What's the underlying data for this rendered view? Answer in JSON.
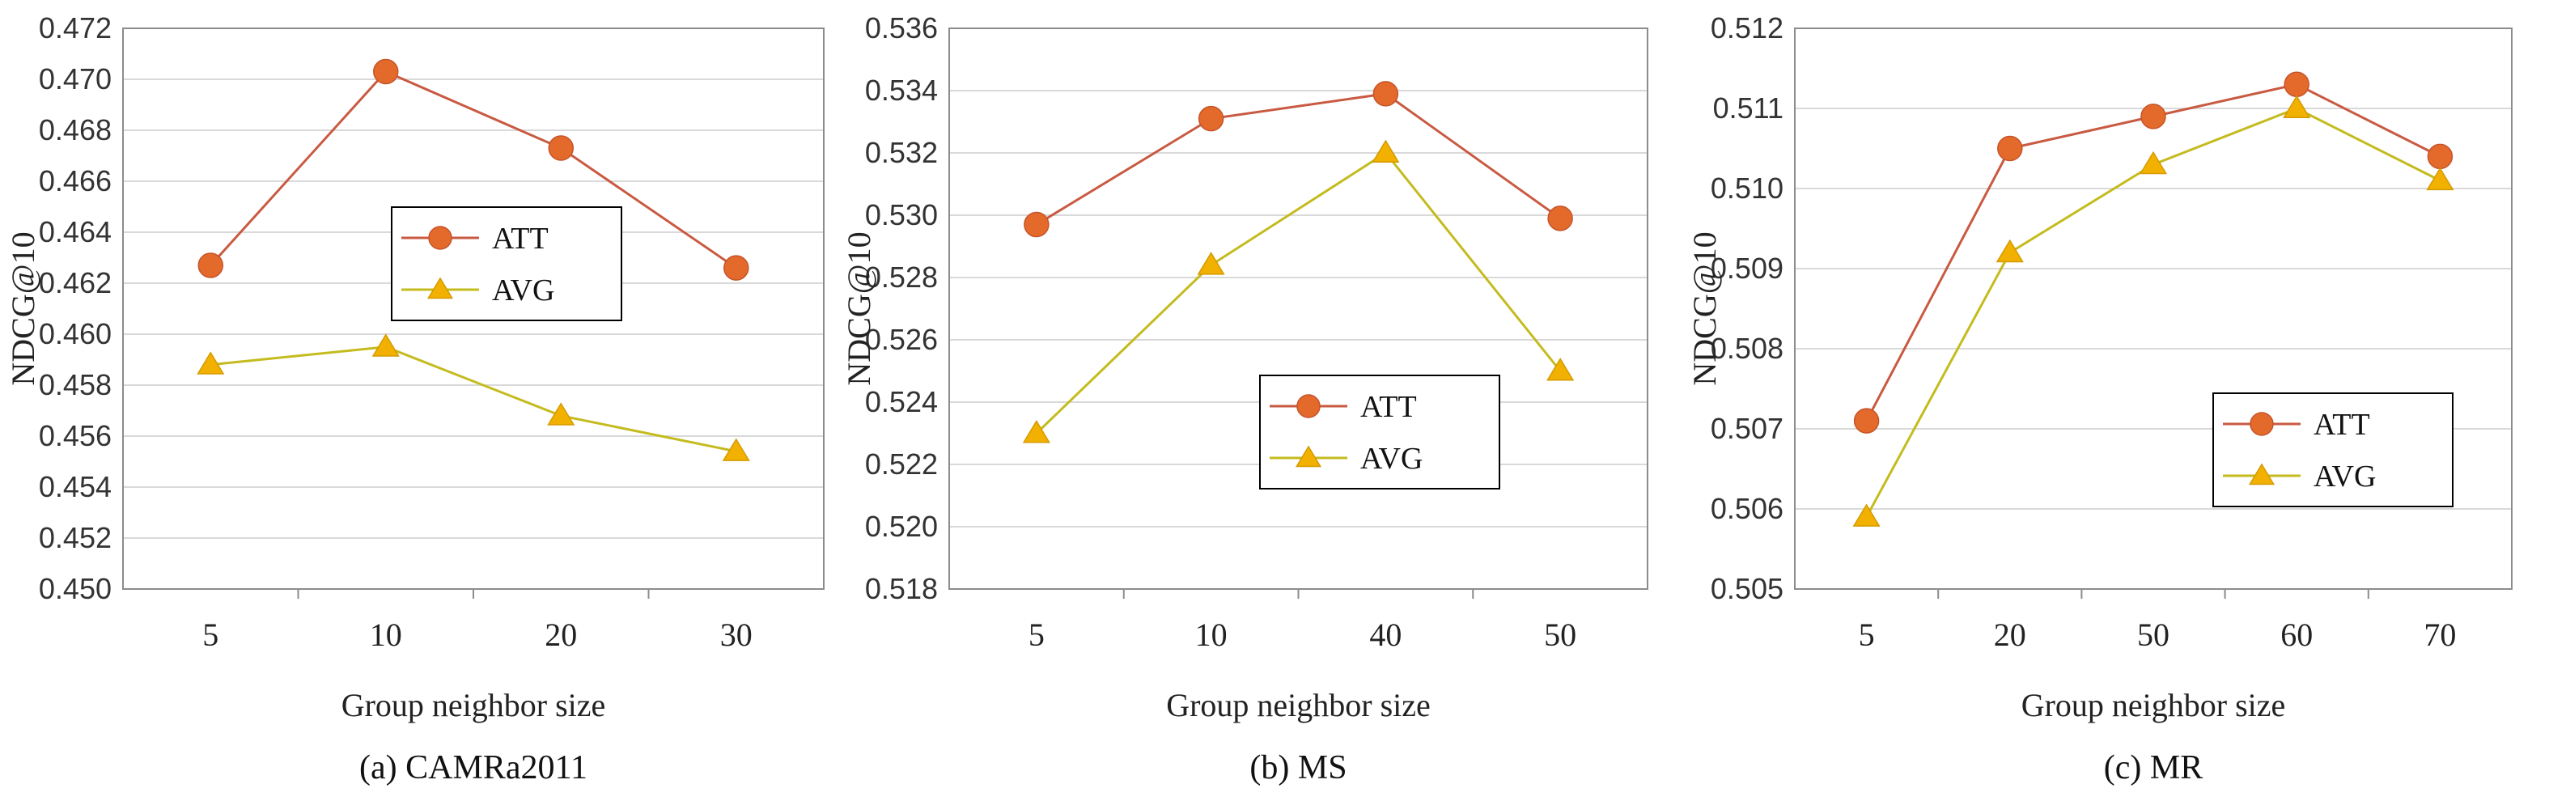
{
  "colors": {
    "att_line": "#c95a42",
    "att_marker": "#e46a2c",
    "avg_line": "#c4bb1e",
    "avg_marker": "#f2b100",
    "grid": "#d9d9d9"
  },
  "chart_data": [
    {
      "type": "line",
      "caption": "(a) CAMRa2011",
      "xlabel": "Group neighbor size",
      "ylabel": "NDCG@10",
      "categories": [
        "5",
        "10",
        "20",
        "30"
      ],
      "ylim": [
        0.45,
        0.472
      ],
      "ytick_labels": [
        "0.450",
        "0.452",
        "0.454",
        "0.456",
        "0.458",
        "0.460",
        "0.462",
        "0.464",
        "0.466",
        "0.468",
        "0.470",
        "0.472"
      ],
      "grid": true,
      "legend_position": "center-right",
      "series": [
        {
          "name": "ATT",
          "values": [
            0.4627,
            0.4703,
            0.4673,
            0.4626
          ]
        },
        {
          "name": "AVG",
          "values": [
            0.4588,
            0.4595,
            0.4568,
            0.4554
          ]
        }
      ]
    },
    {
      "type": "line",
      "caption": "(b) MS",
      "xlabel": "Group neighbor size",
      "ylabel": "NDCG@10",
      "categories": [
        "5",
        "10",
        "40",
        "50"
      ],
      "ylim": [
        0.518,
        0.536
      ],
      "ytick_labels": [
        "0.518",
        "0.520",
        "0.522",
        "0.524",
        "0.526",
        "0.528",
        "0.530",
        "0.532",
        "0.534",
        "0.536"
      ],
      "grid": true,
      "legend_position": "bottom-right",
      "series": [
        {
          "name": "ATT",
          "values": [
            0.5297,
            0.5331,
            0.5339,
            0.5299
          ]
        },
        {
          "name": "AVG",
          "values": [
            0.523,
            0.5284,
            0.532,
            0.525
          ]
        }
      ]
    },
    {
      "type": "line",
      "caption": "(c) MR",
      "xlabel": "Group neighbor size",
      "ylabel": "NDCG@10",
      "categories": [
        "5",
        "20",
        "50",
        "60",
        "70"
      ],
      "ylim": [
        0.505,
        0.512
      ],
      "ytick_labels": [
        "0.505",
        "0.506",
        "0.507",
        "0.508",
        "0.509",
        "0.510",
        "0.511",
        "0.512"
      ],
      "grid": true,
      "legend_position": "bottom-right",
      "series": [
        {
          "name": "ATT",
          "values": [
            0.5071,
            0.5105,
            0.5109,
            0.5113,
            0.5104
          ]
        },
        {
          "name": "AVG",
          "values": [
            0.5059,
            0.5092,
            0.5103,
            0.511,
            0.5101
          ]
        }
      ]
    }
  ]
}
